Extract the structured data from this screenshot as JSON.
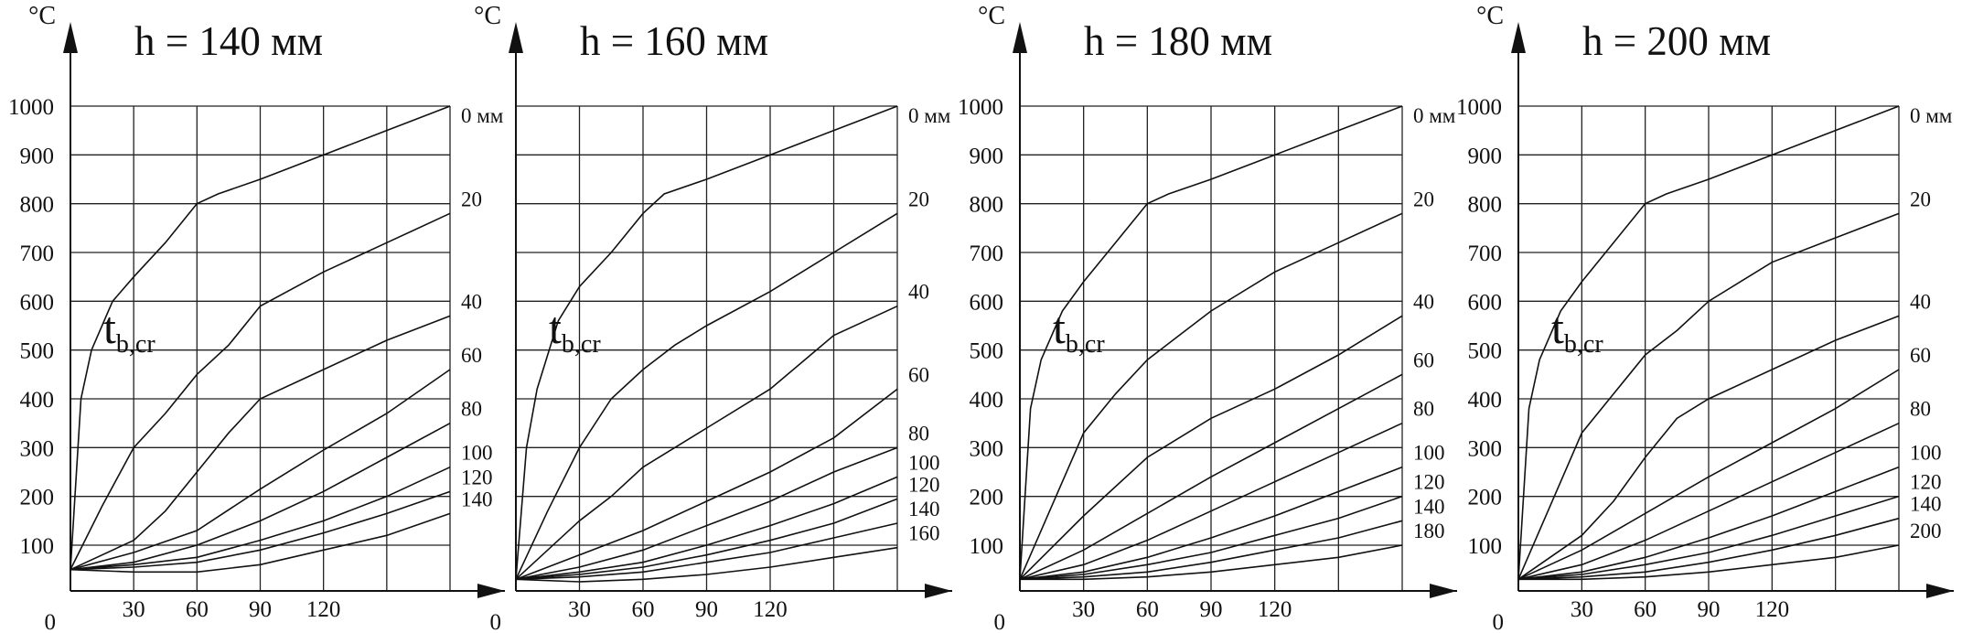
{
  "chart_data": [
    {
      "type": "line",
      "title": "h = 140 мм",
      "ylabel": "°C",
      "annotation": {
        "main": "t",
        "sub": "b,cr"
      },
      "origin_label": "0",
      "y_ticks": [
        100,
        200,
        300,
        400,
        500,
        600,
        700,
        800,
        900,
        1000
      ],
      "x_ticks": [
        30,
        60,
        90,
        120
      ],
      "xlim": [
        0,
        180
      ],
      "ylim": [
        20,
        1000
      ],
      "series": [
        {
          "name": "0 мм",
          "x": [
            0,
            5,
            10,
            20,
            30,
            45,
            60,
            70,
            90,
            120,
            150,
            180
          ],
          "y": [
            50,
            400,
            500,
            600,
            650,
            720,
            800,
            820,
            850,
            900,
            950,
            1000
          ]
        },
        {
          "name": "20",
          "x": [
            0,
            15,
            30,
            45,
            60,
            75,
            90,
            120,
            150,
            180
          ],
          "y": [
            50,
            180,
            300,
            370,
            450,
            510,
            590,
            660,
            720,
            780
          ]
        },
        {
          "name": "40",
          "x": [
            0,
            30,
            45,
            60,
            75,
            90,
            120,
            150,
            180
          ],
          "y": [
            50,
            110,
            170,
            250,
            330,
            400,
            460,
            520,
            570
          ]
        },
        {
          "name": "60",
          "x": [
            0,
            30,
            60,
            90,
            120,
            150,
            180
          ],
          "y": [
            50,
            85,
            130,
            215,
            295,
            370,
            460
          ]
        },
        {
          "name": "80",
          "x": [
            0,
            30,
            60,
            90,
            120,
            150,
            180
          ],
          "y": [
            50,
            65,
            100,
            150,
            210,
            280,
            350
          ]
        },
        {
          "name": "100",
          "x": [
            0,
            30,
            60,
            90,
            120,
            150,
            180
          ],
          "y": [
            50,
            60,
            75,
            110,
            150,
            200,
            260
          ]
        },
        {
          "name": "120",
          "x": [
            0,
            30,
            60,
            90,
            120,
            150,
            180
          ],
          "y": [
            50,
            55,
            65,
            90,
            125,
            165,
            210
          ]
        },
        {
          "name": "140",
          "x": [
            0,
            30,
            60,
            90,
            120,
            150,
            180
          ],
          "y": [
            50,
            45,
            45,
            60,
            90,
            120,
            165
          ]
        }
      ]
    },
    {
      "type": "line",
      "title": "h = 160 мм",
      "ylabel": "°C",
      "annotation": {
        "main": "t",
        "sub": "b,cr"
      },
      "origin_label": "0",
      "y_ticks": [],
      "x_ticks": [
        30,
        60,
        90,
        120
      ],
      "xlim": [
        0,
        180
      ],
      "ylim": [
        20,
        1000
      ],
      "series": [
        {
          "name": "0 мм",
          "x": [
            0,
            5,
            10,
            20,
            30,
            45,
            60,
            70,
            90,
            120,
            150,
            180
          ],
          "y": [
            30,
            300,
            420,
            560,
            630,
            700,
            780,
            820,
            850,
            900,
            950,
            1000
          ]
        },
        {
          "name": "20",
          "x": [
            0,
            15,
            30,
            45,
            60,
            75,
            90,
            120,
            150,
            180
          ],
          "y": [
            30,
            170,
            300,
            400,
            460,
            510,
            550,
            620,
            700,
            780
          ]
        },
        {
          "name": "40",
          "x": [
            0,
            30,
            45,
            60,
            90,
            120,
            150,
            180
          ],
          "y": [
            30,
            150,
            200,
            260,
            340,
            420,
            530,
            590
          ]
        },
        {
          "name": "60",
          "x": [
            0,
            30,
            60,
            90,
            120,
            150,
            180
          ],
          "y": [
            30,
            80,
            130,
            190,
            250,
            320,
            420
          ]
        },
        {
          "name": "80",
          "x": [
            0,
            30,
            60,
            90,
            120,
            150,
            180
          ],
          "y": [
            30,
            55,
            90,
            140,
            190,
            250,
            300
          ]
        },
        {
          "name": "100",
          "x": [
            0,
            30,
            60,
            90,
            120,
            150,
            180
          ],
          "y": [
            30,
            45,
            65,
            100,
            140,
            185,
            240
          ]
        },
        {
          "name": "120",
          "x": [
            0,
            30,
            60,
            90,
            120,
            150,
            180
          ],
          "y": [
            30,
            40,
            55,
            80,
            110,
            145,
            195
          ]
        },
        {
          "name": "140",
          "x": [
            0,
            30,
            60,
            90,
            120,
            150,
            180
          ],
          "y": [
            30,
            35,
            45,
            65,
            85,
            115,
            145
          ]
        },
        {
          "name": "160",
          "x": [
            0,
            30,
            60,
            90,
            120,
            150,
            180
          ],
          "y": [
            30,
            25,
            30,
            40,
            55,
            75,
            95
          ]
        }
      ]
    },
    {
      "type": "line",
      "title": "h = 180 мм",
      "ylabel": "°C",
      "annotation": {
        "main": "t",
        "sub": "b,cr"
      },
      "origin_label": "0",
      "y_ticks": [
        100,
        200,
        300,
        400,
        500,
        600,
        700,
        800,
        900,
        1000
      ],
      "x_ticks": [
        30,
        60,
        90,
        120
      ],
      "xlim": [
        0,
        180
      ],
      "ylim": [
        20,
        1000
      ],
      "series": [
        {
          "name": "0 мм",
          "x": [
            0,
            5,
            10,
            20,
            30,
            45,
            60,
            70,
            90,
            120,
            150,
            180
          ],
          "y": [
            30,
            380,
            480,
            580,
            640,
            720,
            800,
            820,
            850,
            900,
            950,
            1000
          ]
        },
        {
          "name": "20",
          "x": [
            0,
            15,
            30,
            45,
            60,
            75,
            90,
            120,
            150,
            180
          ],
          "y": [
            30,
            180,
            330,
            410,
            480,
            530,
            580,
            660,
            720,
            780
          ]
        },
        {
          "name": "40",
          "x": [
            0,
            30,
            60,
            90,
            120,
            150,
            180
          ],
          "y": [
            30,
            160,
            280,
            360,
            420,
            490,
            570
          ]
        },
        {
          "name": "60",
          "x": [
            0,
            30,
            60,
            90,
            120,
            150,
            180
          ],
          "y": [
            30,
            90,
            165,
            240,
            310,
            380,
            450
          ]
        },
        {
          "name": "80",
          "x": [
            0,
            30,
            60,
            90,
            120,
            150,
            180
          ],
          "y": [
            30,
            60,
            110,
            170,
            230,
            290,
            350
          ]
        },
        {
          "name": "100",
          "x": [
            0,
            30,
            60,
            90,
            120,
            150,
            180
          ],
          "y": [
            30,
            45,
            75,
            115,
            160,
            210,
            260
          ]
        },
        {
          "name": "120",
          "x": [
            0,
            30,
            60,
            90,
            120,
            150,
            180
          ],
          "y": [
            30,
            40,
            60,
            85,
            120,
            155,
            200
          ]
        },
        {
          "name": "140",
          "x": [
            0,
            30,
            60,
            90,
            120,
            150,
            180
          ],
          "y": [
            30,
            35,
            45,
            65,
            90,
            115,
            150
          ]
        },
        {
          "name": "180",
          "x": [
            0,
            30,
            60,
            90,
            120,
            150,
            180
          ],
          "y": [
            30,
            30,
            35,
            45,
            60,
            75,
            100
          ]
        }
      ]
    },
    {
      "type": "line",
      "title": "h = 200 мм",
      "ylabel": "°C",
      "annotation": {
        "main": "t",
        "sub": "b,cr"
      },
      "origin_label": "0",
      "y_ticks": [
        100,
        200,
        300,
        400,
        500,
        600,
        700,
        800,
        900,
        1000
      ],
      "x_ticks": [
        30,
        60,
        90,
        120
      ],
      "xlim": [
        0,
        180
      ],
      "ylim": [
        20,
        1000
      ],
      "series": [
        {
          "name": "0 мм",
          "x": [
            0,
            5,
            10,
            20,
            30,
            45,
            60,
            70,
            90,
            120,
            150,
            180
          ],
          "y": [
            30,
            380,
            480,
            580,
            640,
            720,
            800,
            820,
            850,
            900,
            950,
            1000
          ]
        },
        {
          "name": "20",
          "x": [
            0,
            15,
            30,
            45,
            60,
            75,
            90,
            120,
            150,
            180
          ],
          "y": [
            30,
            180,
            330,
            410,
            490,
            540,
            600,
            680,
            730,
            780
          ]
        },
        {
          "name": "40",
          "x": [
            0,
            30,
            45,
            60,
            75,
            90,
            120,
            150,
            180
          ],
          "y": [
            30,
            120,
            190,
            280,
            360,
            400,
            460,
            520,
            570
          ]
        },
        {
          "name": "60",
          "x": [
            0,
            30,
            60,
            90,
            120,
            150,
            180
          ],
          "y": [
            30,
            90,
            165,
            240,
            310,
            380,
            460
          ]
        },
        {
          "name": "80",
          "x": [
            0,
            30,
            60,
            90,
            120,
            150,
            180
          ],
          "y": [
            30,
            60,
            110,
            170,
            230,
            290,
            350
          ]
        },
        {
          "name": "100",
          "x": [
            0,
            30,
            60,
            90,
            120,
            150,
            180
          ],
          "y": [
            30,
            45,
            75,
            115,
            160,
            210,
            260
          ]
        },
        {
          "name": "120",
          "x": [
            0,
            30,
            60,
            90,
            120,
            150,
            180
          ],
          "y": [
            30,
            40,
            60,
            85,
            120,
            160,
            200
          ]
        },
        {
          "name": "140",
          "x": [
            0,
            30,
            60,
            90,
            120,
            150,
            180
          ],
          "y": [
            30,
            35,
            45,
            65,
            90,
            120,
            155
          ]
        },
        {
          "name": "200",
          "x": [
            0,
            30,
            60,
            90,
            120,
            150,
            180
          ],
          "y": [
            30,
            30,
            35,
            45,
            60,
            75,
            100
          ]
        }
      ]
    }
  ]
}
